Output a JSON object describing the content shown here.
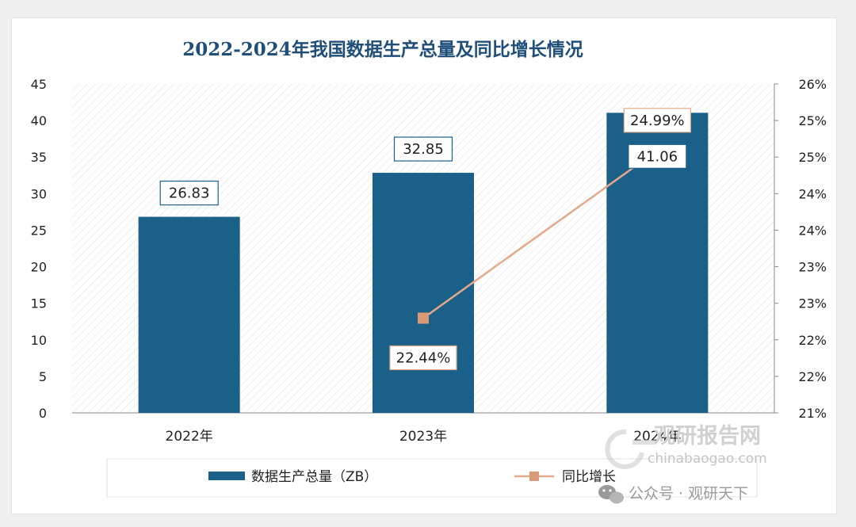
{
  "chart_data": {
    "type": "bar",
    "title": "2022-2024年我国数据生产总量及同比增长情况",
    "categories": [
      "2022年",
      "2023年",
      "2024年"
    ],
    "series": [
      {
        "name": "数据生产总量（ZB）",
        "type": "bar",
        "axis": "left",
        "values": [
          26.83,
          32.85,
          41.06
        ],
        "labels": [
          "26.83",
          "32.85",
          "41.06"
        ]
      },
      {
        "name": "同比增长",
        "type": "line",
        "axis": "right",
        "values": [
          null,
          22.44,
          24.99
        ],
        "labels": [
          "",
          "22.44%",
          "24.99%"
        ]
      }
    ],
    "y_left": {
      "range": [
        0,
        45
      ],
      "ticks": [
        "0",
        "5",
        "10",
        "15",
        "20",
        "25",
        "30",
        "35",
        "40",
        "45"
      ]
    },
    "y_right": {
      "range": [
        21,
        26
      ],
      "ticks": [
        "21%",
        "22%",
        "22%",
        "23%",
        "23%",
        "24%",
        "24%",
        "25%",
        "25%",
        "26%"
      ]
    },
    "legend_position": "bottom",
    "colors": {
      "bar": "#1a6088",
      "line": "#e3a98a",
      "marker": "#d99a78",
      "title": "#1f4e79"
    }
  },
  "watermark": {
    "brand": "观研报告网",
    "domain": "chinabaogao.com",
    "social": "公众号 · 观研天下"
  }
}
